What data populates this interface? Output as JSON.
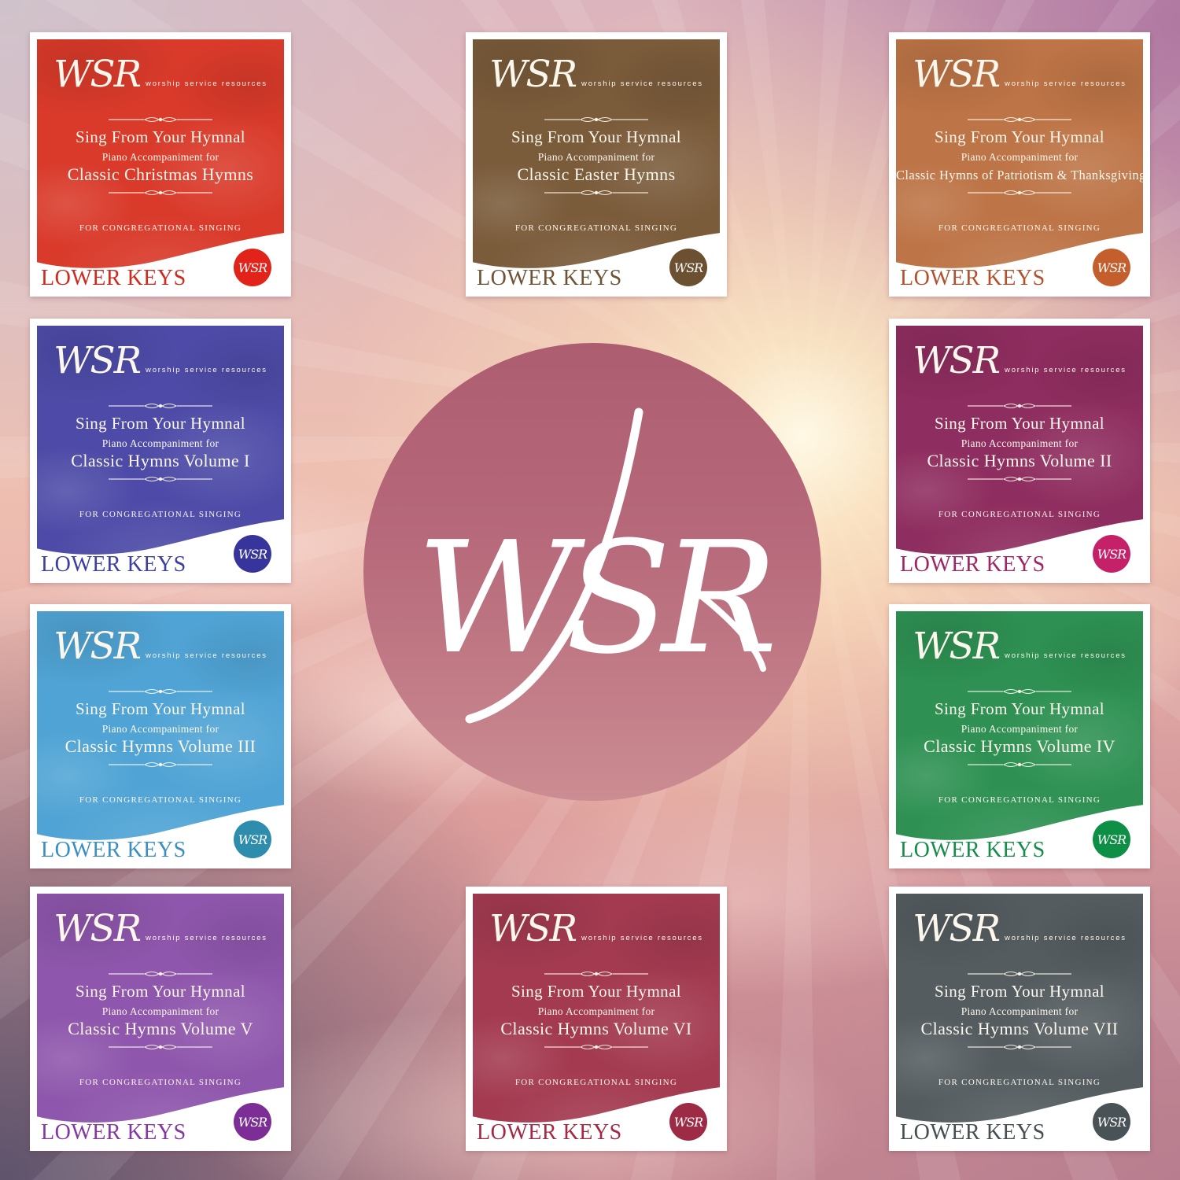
{
  "center_logo": {
    "text": "WSR"
  },
  "cards": [
    {
      "brand": "WSR",
      "brand_tagline": "worship service resources",
      "line1": "Sing From Your Hymnal",
      "line2": "Piano Accompaniment for",
      "title": "Classic Christmas Hymns",
      "footer": "FOR CONGREGATIONAL SINGING",
      "corner_label": "LOWER KEYS",
      "badge_text": "WSR",
      "colors": {
        "base": "#d93a2a",
        "badge": "#e2231a",
        "label": "#ce2a1e"
      },
      "grid": {
        "col": 0,
        "row": 0
      }
    },
    {
      "brand": "WSR",
      "brand_tagline": "worship service resources",
      "line1": "Sing From Your Hymnal",
      "line2": "Piano Accompaniment for",
      "title": "Classic Easter Hymns",
      "footer": "FOR CONGREGATIONAL SINGING",
      "corner_label": "LOWER KEYS",
      "badge_text": "WSR",
      "colors": {
        "base": "#7a5b3a",
        "badge": "#6b5031",
        "label": "#6f5335"
      },
      "grid": {
        "col": 1,
        "row": 0
      }
    },
    {
      "brand": "WSR",
      "brand_tagline": "worship service resources",
      "line1": "Sing From Your Hymnal",
      "line2": "Piano Accompaniment for",
      "title": "Classic Hymns of Patriotism & Thanksgiving",
      "footer": "FOR CONGREGATIONAL SINGING",
      "corner_label": "LOWER KEYS",
      "badge_text": "WSR",
      "colors": {
        "base": "#bd7446",
        "badge": "#c45e2c",
        "label": "#b1512e"
      },
      "grid": {
        "col": 2,
        "row": 0
      }
    },
    {
      "brand": "WSR",
      "brand_tagline": "worship service resources",
      "line1": "Sing From Your Hymnal",
      "line2": "Piano Accompaniment for",
      "title": "Classic Hymns Volume I",
      "footer": "FOR CONGREGATIONAL SINGING",
      "corner_label": "LOWER KEYS",
      "badge_text": "WSR",
      "colors": {
        "base": "#4d4ba7",
        "badge": "#37359c",
        "label": "#3c3f9e"
      },
      "grid": {
        "col": 0,
        "row": 1
      }
    },
    {
      "brand": "WSR",
      "brand_tagline": "worship service resources",
      "line1": "Sing From Your Hymnal",
      "line2": "Piano Accompaniment for",
      "title": "Classic Hymns Volume II",
      "footer": "FOR CONGREGATIONAL SINGING",
      "corner_label": "LOWER KEYS",
      "badge_text": "WSR",
      "colors": {
        "base": "#8e2d5f",
        "badge": "#c52169",
        "label": "#9e2664"
      },
      "grid": {
        "col": 2,
        "row": 1
      }
    },
    {
      "brand": "WSR",
      "brand_tagline": "worship service resources",
      "line1": "Sing From Your Hymnal",
      "line2": "Piano Accompaniment for",
      "title": "Classic Hymns Volume III",
      "footer": "FOR CONGREGATIONAL SINGING",
      "corner_label": "LOWER KEYS",
      "badge_text": "WSR",
      "colors": {
        "base": "#50a4d5",
        "badge": "#2e8dac",
        "label": "#3a8fc0"
      },
      "grid": {
        "col": 0,
        "row": 2
      }
    },
    {
      "brand": "WSR",
      "brand_tagline": "worship service resources",
      "line1": "Sing From Your Hymnal",
      "line2": "Piano Accompaniment for",
      "title": "Classic Hymns Volume IV",
      "footer": "FOR CONGREGATIONAL SINGING",
      "corner_label": "LOWER KEYS",
      "badge_text": "WSR",
      "colors": {
        "base": "#2e9153",
        "badge": "#0e8f46",
        "label": "#178c4a"
      },
      "grid": {
        "col": 2,
        "row": 2
      }
    },
    {
      "brand": "WSR",
      "brand_tagline": "worship service resources",
      "line1": "Sing From Your Hymnal",
      "line2": "Piano Accompaniment for",
      "title": "Classic Hymns Volume V",
      "footer": "FOR CONGREGATIONAL SINGING",
      "corner_label": "LOWER KEYS",
      "badge_text": "WSR",
      "colors": {
        "base": "#8e56ac",
        "badge": "#7c2e96",
        "label": "#8438a2"
      },
      "grid": {
        "col": 0,
        "row": 3
      }
    },
    {
      "brand": "WSR",
      "brand_tagline": "worship service resources",
      "line1": "Sing From Your Hymnal",
      "line2": "Piano Accompaniment for",
      "title": "Classic Hymns Volume VI",
      "footer": "FOR CONGREGATIONAL SINGING",
      "corner_label": "LOWER KEYS",
      "badge_text": "WSR",
      "colors": {
        "base": "#a33a50",
        "badge": "#9d2b45",
        "label": "#a32944"
      },
      "grid": {
        "col": 1,
        "row": 3
      }
    },
    {
      "brand": "WSR",
      "brand_tagline": "worship service resources",
      "line1": "Sing From Your Hymnal",
      "line2": "Piano Accompaniment for",
      "title": "Classic Hymns Volume VII",
      "footer": "FOR CONGREGATIONAL SINGING",
      "corner_label": "LOWER KEYS",
      "badge_text": "WSR",
      "colors": {
        "base": "#545c60",
        "badge": "#485257",
        "label": "#454f53"
      },
      "grid": {
        "col": 2,
        "row": 3
      }
    }
  ]
}
